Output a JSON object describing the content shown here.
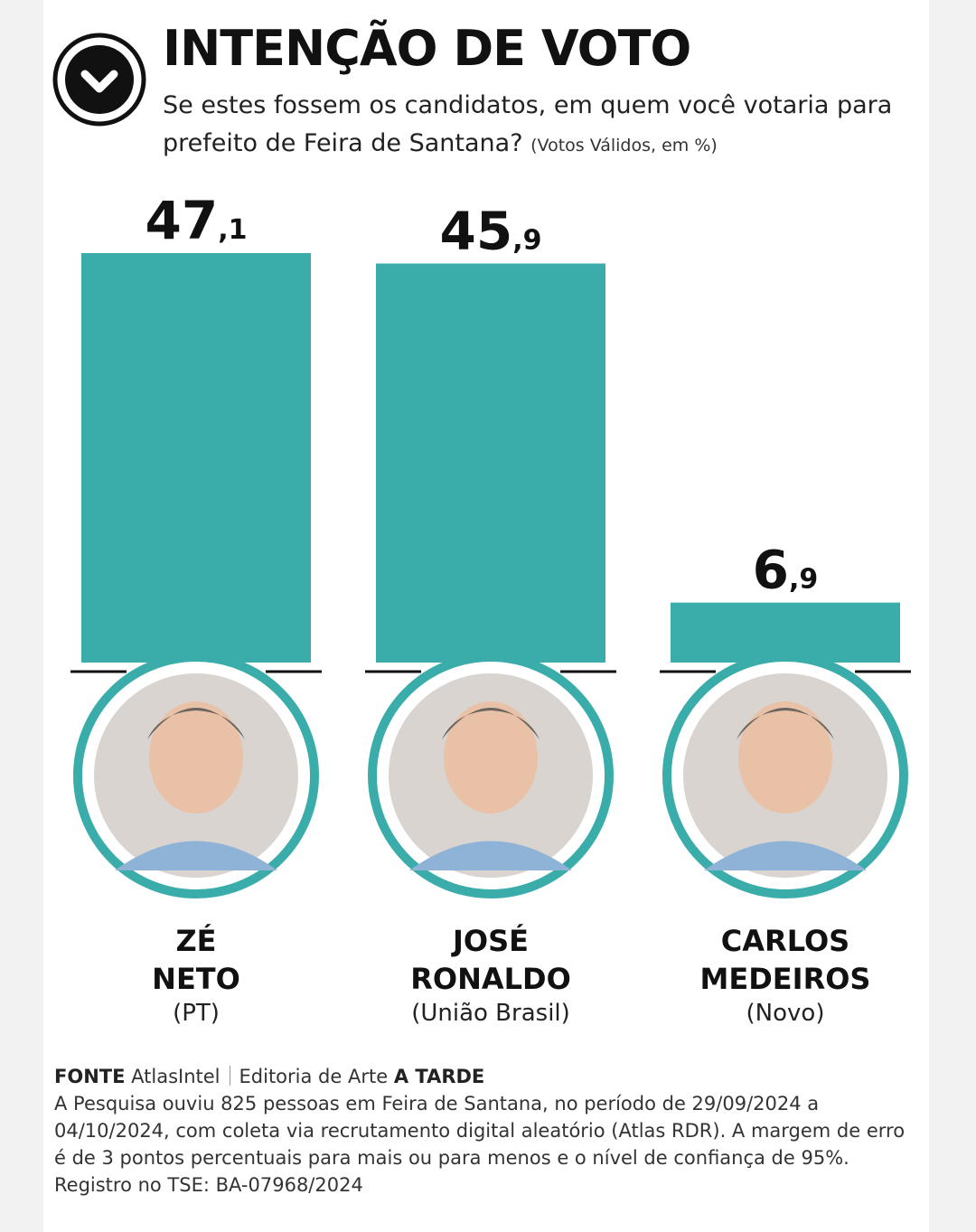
{
  "header": {
    "title": "INTENÇÃO DE VOTO",
    "question": "Se estes fossem os candidatos, em quem você votaria para prefeito de Feira de Santana?",
    "unit_note": "(Votos Válidos, em %)",
    "icon": "check-circle-icon"
  },
  "colors": {
    "bar": "#3aadab",
    "ring": "#3aadab",
    "text": "#111111"
  },
  "chart_data": {
    "type": "bar",
    "categories": [
      "ZÉ NETO (PT)",
      "JOSÉ RONALDO (União Brasil)",
      "CARLOS MEDEIROS (Novo)"
    ],
    "values": [
      47.1,
      45.9,
      6.9
    ],
    "value_labels": [
      {
        "int": "47",
        "dec": ",1"
      },
      {
        "int": "45",
        "dec": ",9"
      },
      {
        "int": "6",
        "dec": ",9"
      }
    ],
    "ylim": [
      0,
      47.1
    ],
    "grid": false,
    "title": "INTENÇÃO DE VOTO"
  },
  "candidates": [
    {
      "name_line1": "ZÉ",
      "name_line2": "NETO",
      "party": "(PT)"
    },
    {
      "name_line1": "JOSÉ",
      "name_line2": "RONALDO",
      "party": "(União Brasil)"
    },
    {
      "name_line1": "CARLOS",
      "name_line2": "MEDEIROS",
      "party": "(Novo)"
    }
  ],
  "footer": {
    "source_label": "FONTE",
    "source": "AtlasIntel",
    "credit_prefix": "Editoria de Arte",
    "credit_brand": "A TARDE",
    "methodology": "A Pesquisa ouviu 825 pessoas em Feira de Santana, no período de 29/09/2024 a 04/10/2024, com coleta via recrutamento digital aleatório (Atlas RDR). A margem de erro é de 3 pontos percentuais para mais ou para menos e o nível de confiança de 95%. Registro no TSE: BA-07968/2024"
  }
}
